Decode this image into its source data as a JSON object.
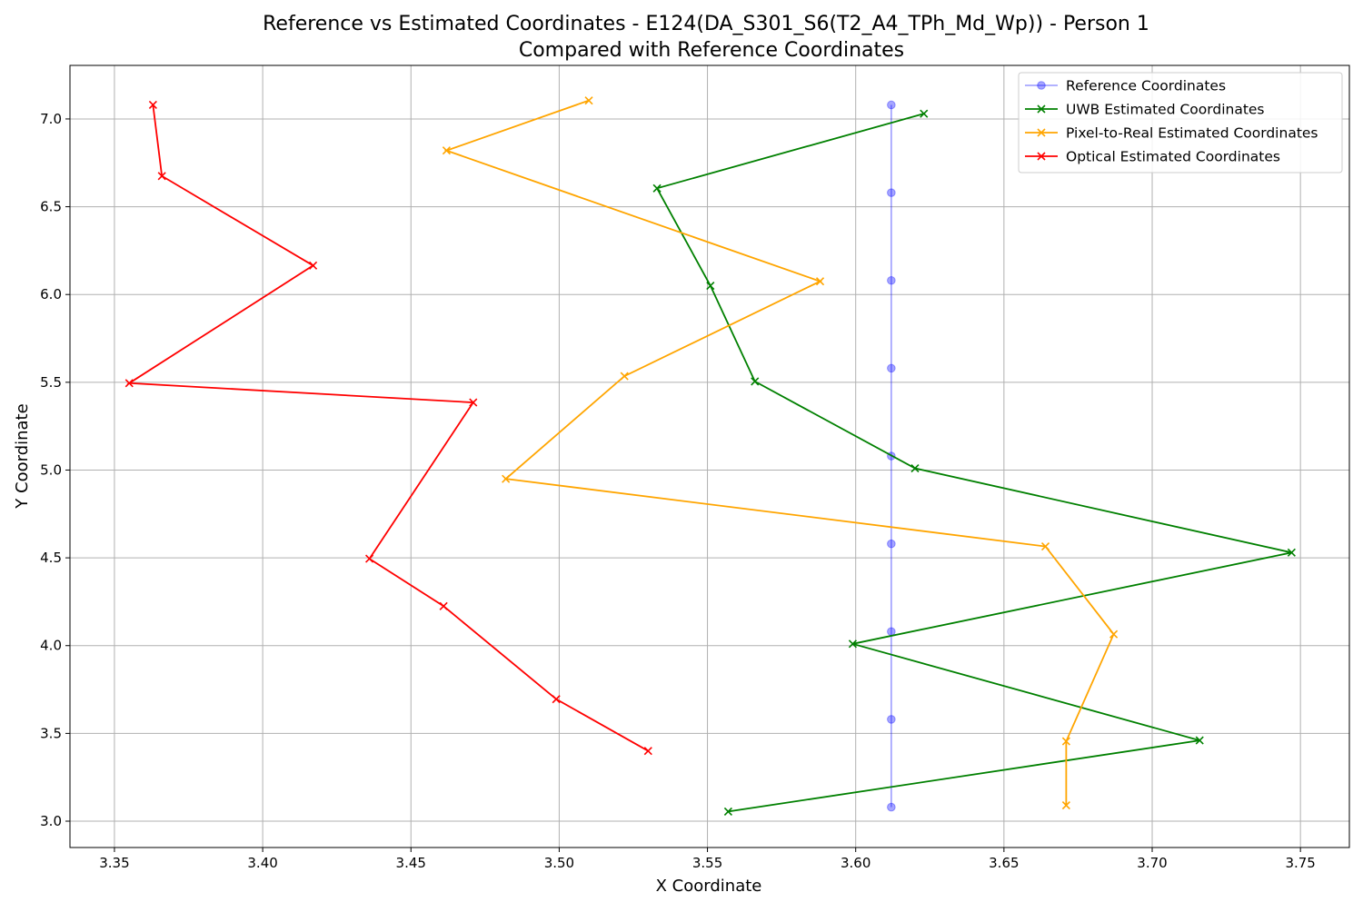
{
  "chart_data": {
    "type": "line",
    "title": "Reference vs Estimated Coordinates - E124(DA_S301_S6(T2_A4_TPh_Md_Wp)) - Person 1",
    "subtitle": "Compared with Reference Coordinates",
    "xlabel": "X Coordinate",
    "ylabel": "Y Coordinate",
    "xlim": [
      3.335,
      3.7665
    ],
    "ylim": [
      2.85,
      7.305
    ],
    "xticks": [
      3.35,
      3.4,
      3.45,
      3.5,
      3.55,
      3.6,
      3.65,
      3.7,
      3.75
    ],
    "xtick_labels": [
      "3.35",
      "3.40",
      "3.45",
      "3.50",
      "3.55",
      "3.60",
      "3.65",
      "3.70",
      "3.75"
    ],
    "yticks": [
      3.0,
      3.5,
      4.0,
      4.5,
      5.0,
      5.5,
      6.0,
      6.5,
      7.0
    ],
    "ytick_labels": [
      "3.0",
      "3.5",
      "4.0",
      "4.5",
      "5.0",
      "5.5",
      "6.0",
      "6.5",
      "7.0"
    ],
    "grid": true,
    "legend_position": "upper right",
    "series": [
      {
        "name": "Reference Coordinates",
        "color": "#0000ff",
        "opacity": 0.35,
        "marker": "circle",
        "points": [
          [
            3.612,
            3.08
          ],
          [
            3.612,
            3.58
          ],
          [
            3.612,
            4.08
          ],
          [
            3.612,
            4.58
          ],
          [
            3.612,
            5.08
          ],
          [
            3.612,
            5.58
          ],
          [
            3.612,
            6.08
          ],
          [
            3.612,
            6.58
          ],
          [
            3.612,
            7.08
          ]
        ]
      },
      {
        "name": "UWB Estimated Coordinates",
        "color": "#008000",
        "opacity": 1,
        "marker": "x",
        "points": [
          [
            3.557,
            3.055
          ],
          [
            3.716,
            3.46
          ],
          [
            3.599,
            4.01
          ],
          [
            3.747,
            4.53
          ],
          [
            3.62,
            5.01
          ],
          [
            3.566,
            5.505
          ],
          [
            3.551,
            6.05
          ],
          [
            3.533,
            6.605
          ],
          [
            3.623,
            7.03
          ]
        ]
      },
      {
        "name": "Pixel-to-Real Estimated Coordinates",
        "color": "#ffa500",
        "opacity": 1,
        "marker": "x",
        "points": [
          [
            3.671,
            3.09
          ],
          [
            3.671,
            3.455
          ],
          [
            3.687,
            4.065
          ],
          [
            3.664,
            4.565
          ],
          [
            3.482,
            4.95
          ],
          [
            3.522,
            5.535
          ],
          [
            3.588,
            6.075
          ],
          [
            3.462,
            6.82
          ],
          [
            3.51,
            7.105
          ]
        ]
      },
      {
        "name": "Optical Estimated Coordinates",
        "color": "#ff0000",
        "opacity": 1,
        "marker": "x",
        "points": [
          [
            3.53,
            3.4
          ],
          [
            3.499,
            3.695
          ],
          [
            3.461,
            4.225
          ],
          [
            3.436,
            4.495
          ],
          [
            3.471,
            5.385
          ],
          [
            3.355,
            5.495
          ],
          [
            3.417,
            6.165
          ],
          [
            3.366,
            6.675
          ],
          [
            3.363,
            7.08
          ]
        ]
      }
    ]
  }
}
